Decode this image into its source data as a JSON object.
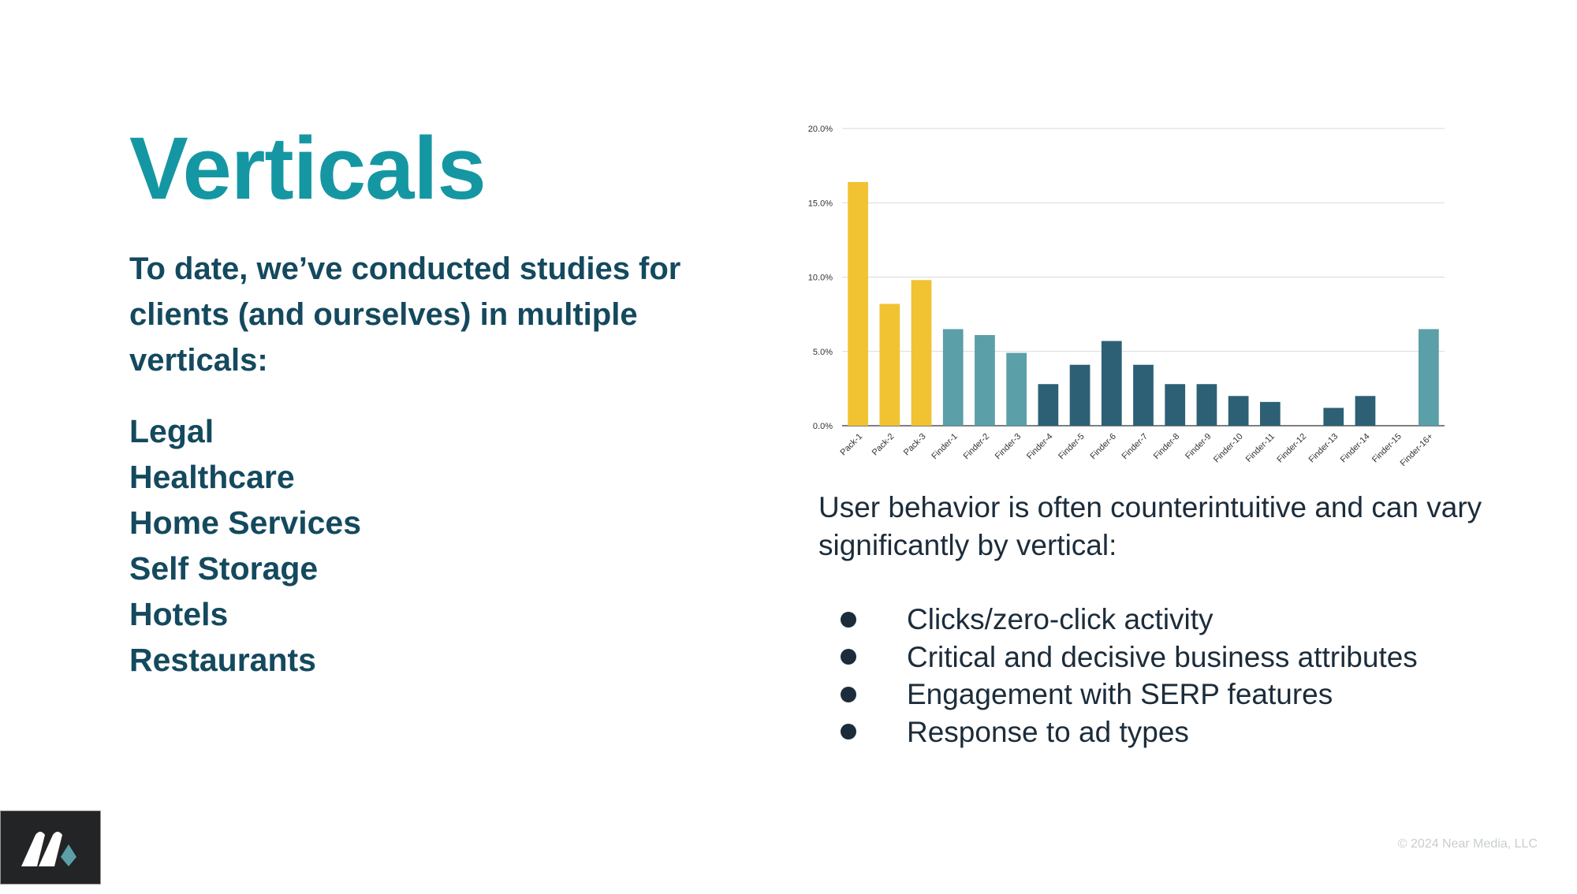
{
  "title": "Verticals",
  "intro": "To date, we’ve conducted studies for clients (and ourselves) in multiple verticals:",
  "verticals": [
    "Legal",
    "Healthcare",
    "Home Services",
    "Self Storage",
    "Hotels",
    "Restaurants"
  ],
  "behavior_text": "User behavior is often counterintuitive and can vary significantly by vertical:",
  "bullets": [
    "Clicks/zero-click activity",
    "Critical and decisive business attributes",
    "Engagement with SERP features",
    "Response to ad types"
  ],
  "copyright": "© 2024 Near Media, LLC",
  "logo_icon": "near-media-logo-icon",
  "colors": {
    "title": "#1597a3",
    "heading_text": "#14495e",
    "pack": "#f1c232",
    "finder_light": "#5b9fa8",
    "finder_dark": "#2d6075"
  },
  "chart_data": {
    "type": "bar",
    "categories": [
      "Pack-1",
      "Pack-2",
      "Pack-3",
      "Finder-1",
      "Finder-2",
      "Finder-3",
      "Finder-4",
      "Finder-5",
      "Finder-6",
      "Finder-7",
      "Finder-8",
      "Finder-9",
      "Finder-10",
      "Finder-11",
      "Finder-12",
      "Finder-13",
      "Finder-14",
      "Finder-15",
      "Finder-16+"
    ],
    "values": [
      16.4,
      8.2,
      9.8,
      6.5,
      6.1,
      4.9,
      2.8,
      4.1,
      5.7,
      4.1,
      2.8,
      2.8,
      2.0,
      1.6,
      0.0,
      1.2,
      2.0,
      0.0,
      6.5
    ],
    "bar_colors": [
      "#f1c232",
      "#f1c232",
      "#f1c232",
      "#5b9fa8",
      "#5b9fa8",
      "#5b9fa8",
      "#2d6075",
      "#2d6075",
      "#2d6075",
      "#2d6075",
      "#2d6075",
      "#2d6075",
      "#2d6075",
      "#2d6075",
      "#2d6075",
      "#2d6075",
      "#2d6075",
      "#2d6075",
      "#5b9fa8"
    ],
    "yticks": [
      "0.0%",
      "5.0%",
      "10.0%",
      "15.0%",
      "20.0%"
    ],
    "ylim": [
      0,
      20
    ],
    "grid": true,
    "legend": "none"
  }
}
